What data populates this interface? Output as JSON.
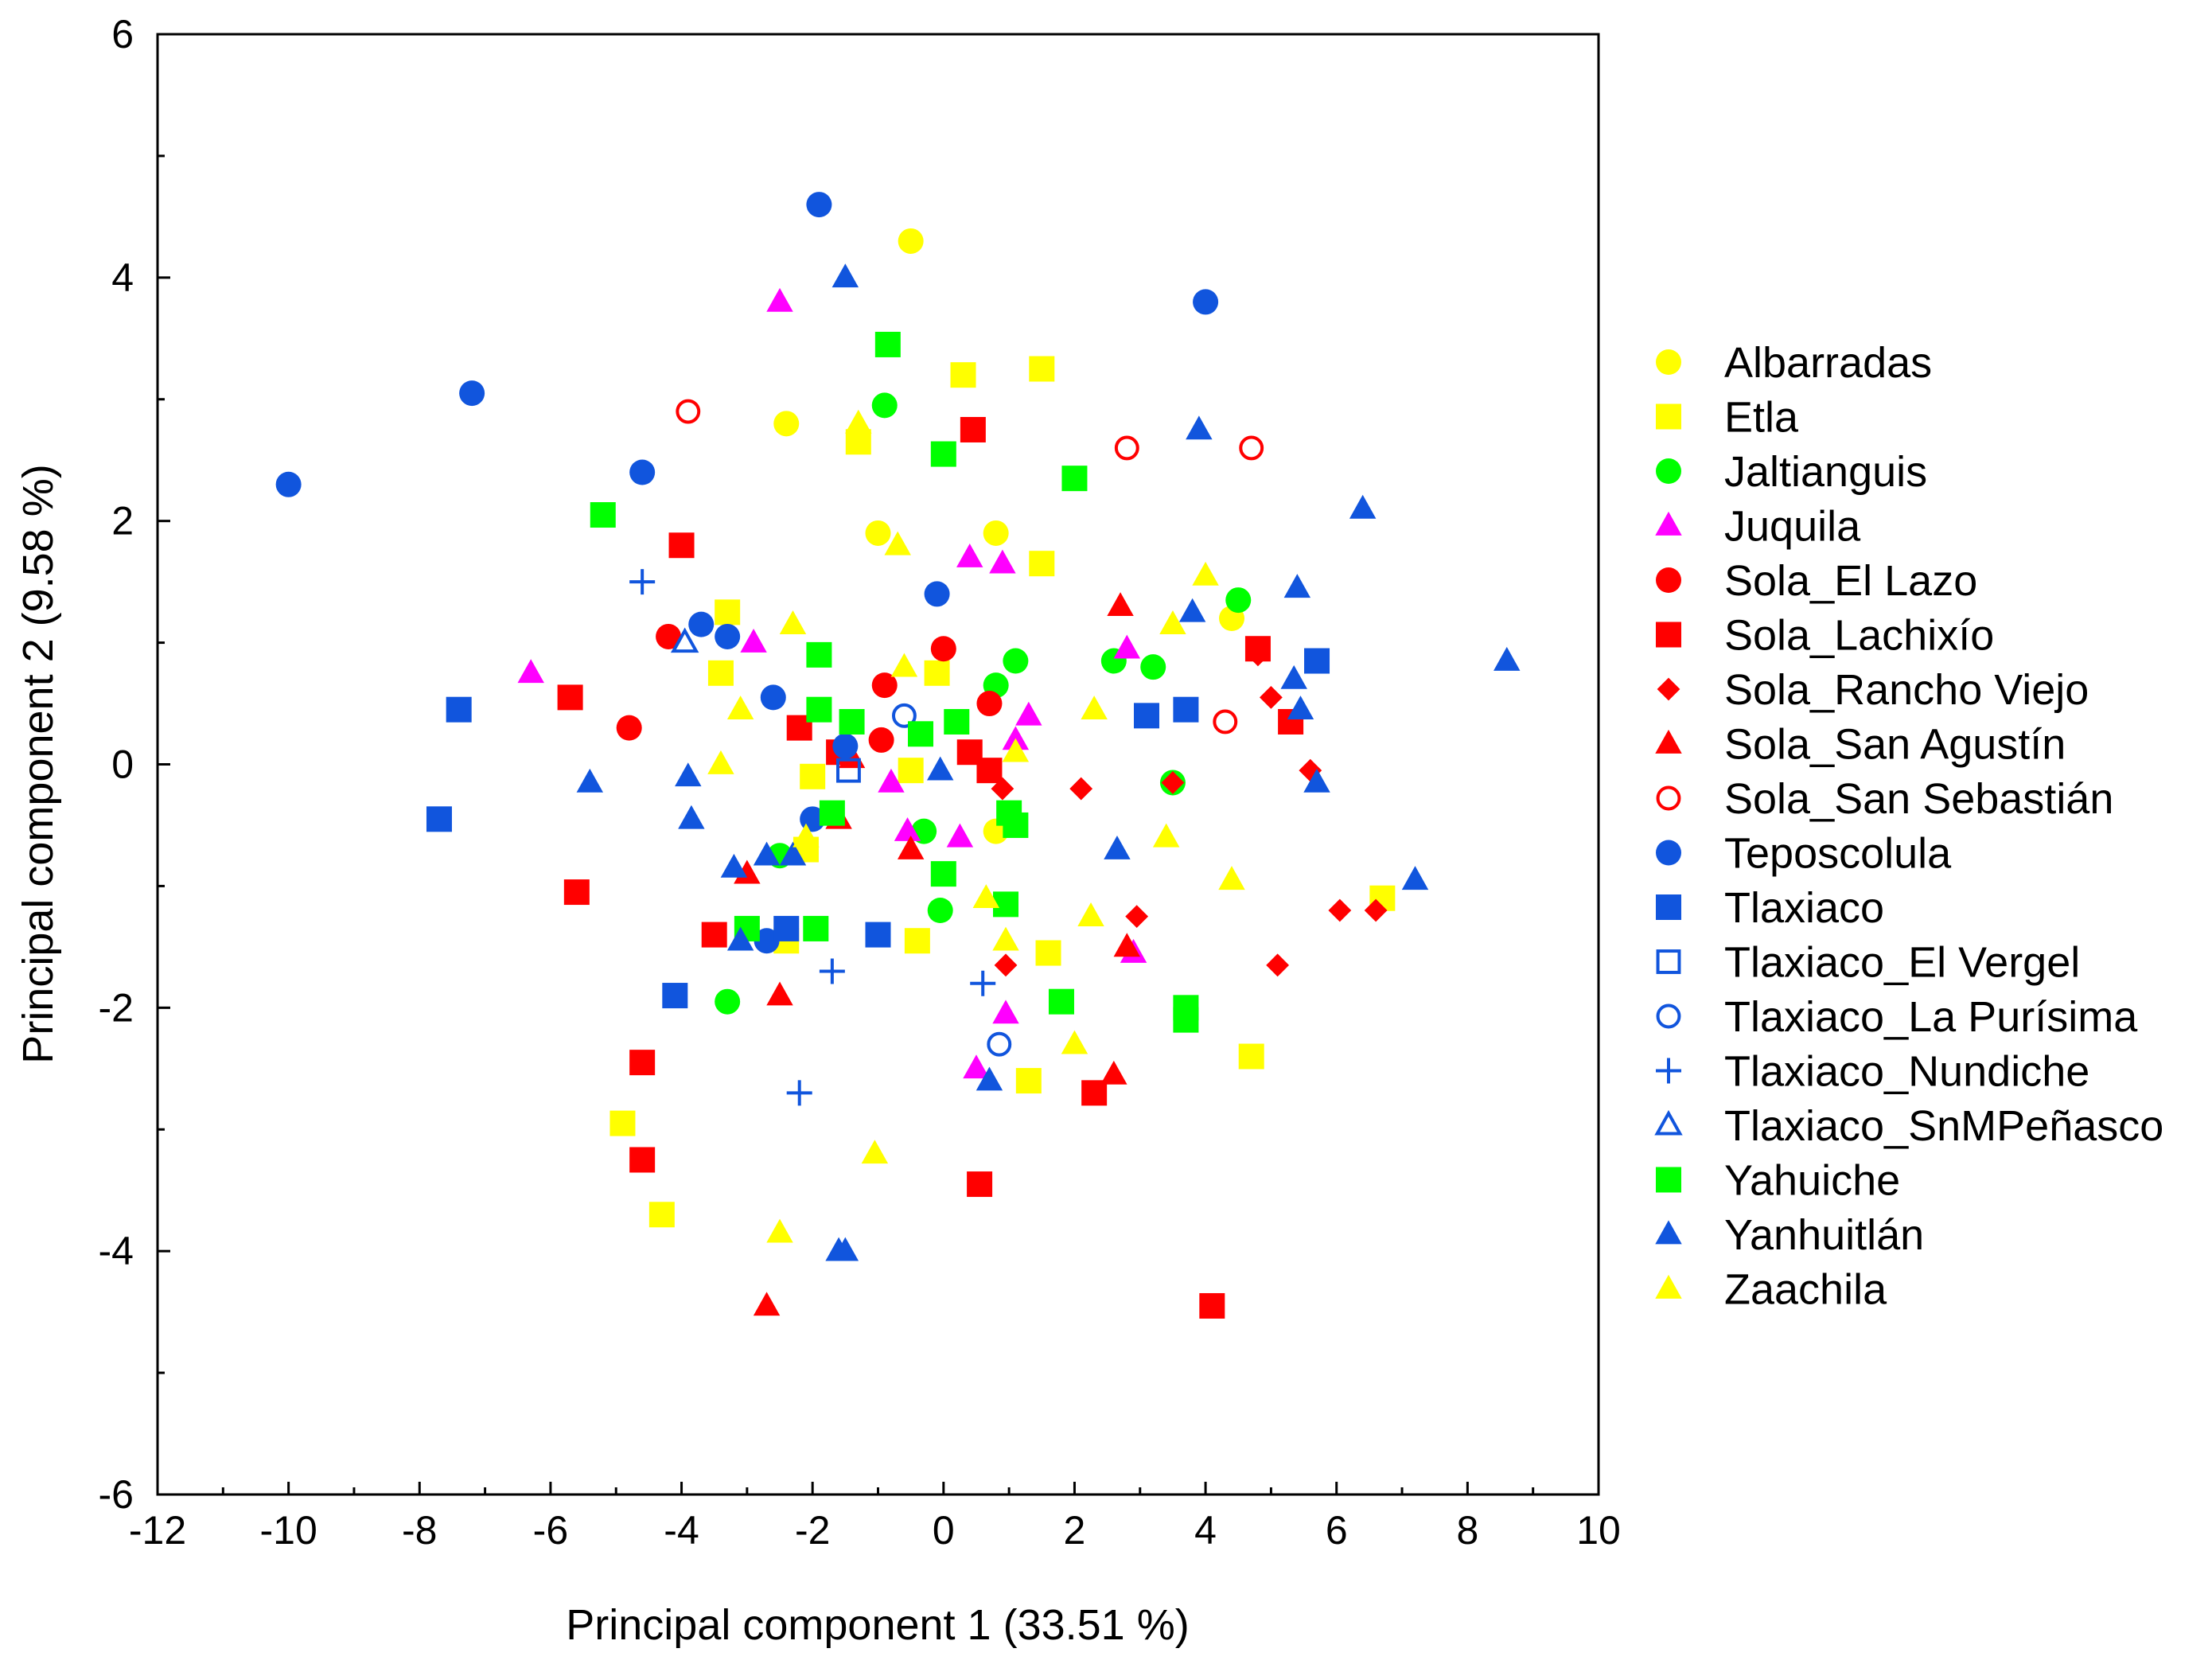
{
  "chart_data": {
    "type": "scatter",
    "title": "",
    "xlabel": "Principal component 1 (33.51 %)",
    "ylabel": "Principal component 2 (9.58 %)",
    "xlim": [
      -12,
      10
    ],
    "ylim": [
      -6,
      6
    ],
    "xticks": [
      -12,
      -10,
      -8,
      -6,
      -4,
      -2,
      0,
      2,
      4,
      6,
      8,
      10
    ],
    "yticks": [
      -6,
      -4,
      -2,
      0,
      2,
      4,
      6
    ],
    "grid": false,
    "legend_position": "right",
    "series": [
      {
        "name": "Albarradas",
        "color": "#ffff00",
        "marker": "circle",
        "filled": true,
        "points": [
          [
            -0.5,
            4.3
          ],
          [
            -2.4,
            2.8
          ],
          [
            -1.0,
            1.9
          ],
          [
            0.8,
            1.9
          ],
          [
            4.4,
            1.2
          ],
          [
            0.8,
            -0.55
          ]
        ]
      },
      {
        "name": "Etla",
        "color": "#ffff00",
        "marker": "square",
        "filled": true,
        "points": [
          [
            0.3,
            3.2
          ],
          [
            1.5,
            3.25
          ],
          [
            -1.3,
            2.65
          ],
          [
            1.5,
            1.65
          ],
          [
            -3.3,
            1.25
          ],
          [
            -3.4,
            0.75
          ],
          [
            -0.1,
            0.75
          ],
          [
            -0.5,
            -0.05
          ],
          [
            -2.0,
            -0.1
          ],
          [
            -2.1,
            -0.7
          ],
          [
            1.6,
            -1.55
          ],
          [
            -0.4,
            -1.45
          ],
          [
            -2.4,
            -1.45
          ],
          [
            1.3,
            -2.6
          ],
          [
            4.7,
            -2.4
          ],
          [
            -4.9,
            -2.95
          ],
          [
            -4.3,
            -3.7
          ],
          [
            6.7,
            -1.1
          ]
        ]
      },
      {
        "name": "Jaltianguis",
        "color": "#00ff00",
        "marker": "circle",
        "filled": true,
        "points": [
          [
            -0.9,
            2.95
          ],
          [
            4.5,
            1.35
          ],
          [
            1.1,
            0.85
          ],
          [
            0.8,
            0.65
          ],
          [
            2.6,
            0.85
          ],
          [
            3.2,
            0.8
          ],
          [
            3.5,
            -0.15
          ],
          [
            -0.3,
            -0.55
          ],
          [
            -2.5,
            -0.75
          ],
          [
            -0.05,
            -1.2
          ],
          [
            -3.3,
            -1.95
          ]
        ]
      },
      {
        "name": "Juquila",
        "color": "#ff00ff",
        "marker": "triangle",
        "filled": true,
        "points": [
          [
            -2.5,
            3.8
          ],
          [
            -6.3,
            0.75
          ],
          [
            -2.9,
            1.0
          ],
          [
            0.4,
            1.7
          ],
          [
            0.9,
            1.65
          ],
          [
            1.3,
            0.4
          ],
          [
            1.1,
            0.2
          ],
          [
            -0.8,
            -0.15
          ],
          [
            -0.55,
            -0.55
          ],
          [
            0.25,
            -0.6
          ],
          [
            2.8,
            0.95
          ],
          [
            2.9,
            -1.55
          ],
          [
            0.95,
            -2.05
          ],
          [
            0.5,
            -2.5
          ]
        ]
      },
      {
        "name": "Sola_El Lazo",
        "color": "#ff0000",
        "marker": "circle",
        "filled": true,
        "points": [
          [
            -4.2,
            1.05
          ],
          [
            -4.8,
            0.3
          ],
          [
            0.0,
            0.95
          ],
          [
            -0.9,
            0.65
          ],
          [
            0.7,
            0.5
          ],
          [
            -0.95,
            0.2
          ]
        ]
      },
      {
        "name": "Sola_Lachixío",
        "color": "#ff0000",
        "marker": "square",
        "filled": true,
        "points": [
          [
            0.45,
            2.75
          ],
          [
            -4.0,
            1.8
          ],
          [
            -5.7,
            0.55
          ],
          [
            -2.2,
            0.3
          ],
          [
            -1.6,
            0.1
          ],
          [
            0.4,
            0.1
          ],
          [
            0.7,
            -0.05
          ],
          [
            4.8,
            0.95
          ],
          [
            5.3,
            0.35
          ],
          [
            -5.6,
            -1.05
          ],
          [
            -3.5,
            -1.4
          ],
          [
            -4.6,
            -2.45
          ],
          [
            -4.6,
            -3.25
          ],
          [
            2.3,
            -2.7
          ],
          [
            0.55,
            -3.45
          ],
          [
            4.1,
            -4.45
          ]
        ]
      },
      {
        "name": "Sola_Rancho Viejo",
        "color": "#ff0000",
        "marker": "diamond",
        "filled": true,
        "points": [
          [
            4.8,
            0.9
          ],
          [
            5.0,
            0.55
          ],
          [
            5.6,
            -0.05
          ],
          [
            2.1,
            -0.2
          ],
          [
            3.5,
            -0.15
          ],
          [
            0.9,
            -0.2
          ],
          [
            2.95,
            -1.25
          ],
          [
            0.95,
            -1.65
          ],
          [
            5.1,
            -1.65
          ],
          [
            6.05,
            -1.2
          ],
          [
            6.6,
            -1.2
          ]
        ]
      },
      {
        "name": "Sola_San Agustín",
        "color": "#ff0000",
        "marker": "triangle",
        "filled": true,
        "points": [
          [
            2.7,
            1.3
          ],
          [
            -1.4,
            0.05
          ],
          [
            -1.6,
            -0.45
          ],
          [
            -0.5,
            -0.7
          ],
          [
            -3.0,
            -0.9
          ],
          [
            2.8,
            -1.5
          ],
          [
            -2.5,
            -1.9
          ],
          [
            2.6,
            -2.55
          ],
          [
            -2.7,
            -4.45
          ]
        ]
      },
      {
        "name": "Sola_San Sebastián",
        "color": "#ff0000",
        "marker": "circle",
        "filled": false,
        "points": [
          [
            -3.9,
            2.9
          ],
          [
            2.8,
            2.6
          ],
          [
            4.7,
            2.6
          ],
          [
            4.3,
            0.35
          ]
        ]
      },
      {
        "name": "Teposcolula",
        "color": "#1155dd",
        "marker": "circle",
        "filled": true,
        "points": [
          [
            -1.9,
            4.6
          ],
          [
            4.0,
            3.8
          ],
          [
            -7.2,
            3.05
          ],
          [
            -10.0,
            2.3
          ],
          [
            -4.6,
            2.4
          ],
          [
            -3.7,
            1.15
          ],
          [
            -3.3,
            1.05
          ],
          [
            -0.1,
            1.4
          ],
          [
            -2.6,
            0.55
          ],
          [
            -1.5,
            0.15
          ],
          [
            -2.0,
            -0.45
          ],
          [
            -2.7,
            -1.45
          ]
        ]
      },
      {
        "name": "Tlaxiaco",
        "color": "#1155dd",
        "marker": "square",
        "filled": true,
        "points": [
          [
            -7.4,
            0.45
          ],
          [
            -7.7,
            -0.45
          ],
          [
            5.7,
            0.85
          ],
          [
            3.7,
            0.45
          ],
          [
            3.1,
            0.4
          ],
          [
            -2.4,
            -1.35
          ],
          [
            -1.0,
            -1.4
          ],
          [
            -4.1,
            -1.9
          ]
        ]
      },
      {
        "name": "Tlaxiaco_El Vergel",
        "color": "#1155dd",
        "marker": "square",
        "filled": false,
        "points": [
          [
            -1.45,
            -0.05
          ]
        ]
      },
      {
        "name": "Tlaxiaco_La Purísima",
        "color": "#1155dd",
        "marker": "circle",
        "filled": false,
        "points": [
          [
            -0.6,
            0.4
          ],
          [
            0.85,
            -2.3
          ]
        ]
      },
      {
        "name": "Tlaxiaco_Nundiche",
        "color": "#1155dd",
        "marker": "plus",
        "filled": true,
        "points": [
          [
            -4.6,
            1.5
          ],
          [
            -1.7,
            -1.7
          ],
          [
            0.6,
            -1.8
          ],
          [
            -2.2,
            -2.7
          ]
        ]
      },
      {
        "name": "Tlaxiaco_SnMPeñasco",
        "color": "#1155dd",
        "marker": "triangle",
        "filled": false,
        "points": [
          [
            -3.95,
            1.0
          ]
        ]
      },
      {
        "name": "Yahuiche",
        "color": "#00ff00",
        "marker": "square",
        "filled": true,
        "points": [
          [
            -0.85,
            3.45
          ],
          [
            -5.2,
            2.05
          ],
          [
            0.0,
            2.55
          ],
          [
            2.0,
            2.35
          ],
          [
            -1.9,
            0.9
          ],
          [
            -1.9,
            0.45
          ],
          [
            -1.4,
            0.35
          ],
          [
            -0.35,
            0.25
          ],
          [
            0.2,
            0.35
          ],
          [
            -1.7,
            -0.4
          ],
          [
            1.0,
            -0.4
          ],
          [
            1.1,
            -0.5
          ],
          [
            0.0,
            -0.9
          ],
          [
            0.95,
            -1.15
          ],
          [
            -3.0,
            -1.35
          ],
          [
            -1.95,
            -1.35
          ],
          [
            1.8,
            -1.95
          ],
          [
            3.7,
            -2.0
          ],
          [
            3.7,
            -2.1
          ]
        ]
      },
      {
        "name": "Yanhuitlán",
        "color": "#1155dd",
        "marker": "triangle",
        "filled": true,
        "points": [
          [
            -1.5,
            4.0
          ],
          [
            3.9,
            2.75
          ],
          [
            6.4,
            2.1
          ],
          [
            8.6,
            0.85
          ],
          [
            5.4,
            1.45
          ],
          [
            3.8,
            1.25
          ],
          [
            5.35,
            0.7
          ],
          [
            5.45,
            0.45
          ],
          [
            5.7,
            -0.15
          ],
          [
            -5.4,
            -0.15
          ],
          [
            -3.9,
            -0.1
          ],
          [
            -3.85,
            -0.45
          ],
          [
            -0.05,
            -0.05
          ],
          [
            -3.2,
            -0.85
          ],
          [
            -2.7,
            -0.75
          ],
          [
            -2.3,
            -0.75
          ],
          [
            -3.1,
            -1.45
          ],
          [
            2.65,
            -0.7
          ],
          [
            7.2,
            -0.95
          ],
          [
            0.7,
            -2.6
          ],
          [
            -1.6,
            -4.0
          ],
          [
            -1.5,
            -4.0
          ]
        ]
      },
      {
        "name": "Zaachila",
        "color": "#ffff00",
        "marker": "triangle",
        "filled": true,
        "points": [
          [
            -1.3,
            2.8
          ],
          [
            -0.7,
            1.8
          ],
          [
            4.0,
            1.55
          ],
          [
            -2.3,
            1.15
          ],
          [
            3.5,
            1.15
          ],
          [
            -0.6,
            0.8
          ],
          [
            -3.1,
            0.45
          ],
          [
            2.3,
            0.45
          ],
          [
            1.1,
            0.1
          ],
          [
            -3.4,
            0.0
          ],
          [
            -2.1,
            -0.6
          ],
          [
            3.4,
            -0.6
          ],
          [
            4.4,
            -0.95
          ],
          [
            0.65,
            -1.1
          ],
          [
            0.95,
            -1.45
          ],
          [
            2.25,
            -1.25
          ],
          [
            2.0,
            -2.3
          ],
          [
            -1.05,
            -3.2
          ],
          [
            -2.5,
            -3.85
          ]
        ]
      }
    ]
  }
}
